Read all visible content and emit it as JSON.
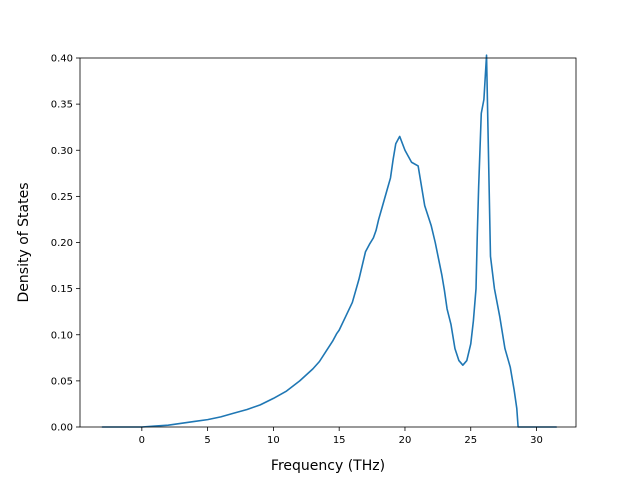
{
  "chart_data": {
    "type": "line",
    "title": "",
    "xlabel": "Frequency (THz)",
    "ylabel": "Density of States",
    "xlim": [
      -4.7,
      33.0
    ],
    "ylim": [
      0.0,
      0.4
    ],
    "grid": false,
    "legend": "none",
    "x_ticks": [
      0,
      5,
      10,
      15,
      20,
      25,
      30
    ],
    "x_tick_labels": [
      "0",
      "5",
      "10",
      "15",
      "20",
      "25",
      "30"
    ],
    "y_ticks": [
      0.0,
      0.05,
      0.1,
      0.15,
      0.2,
      0.25,
      0.3,
      0.35,
      0.4
    ],
    "y_tick_labels": [
      "0.00",
      "0.05",
      "0.10",
      "0.15",
      "0.20",
      "0.25",
      "0.30",
      "0.35",
      "0.40"
    ],
    "colors": {
      "line": "#1f77b4"
    },
    "series": [
      {
        "x": [
          -3,
          0,
          1,
          2,
          3,
          4,
          5,
          6,
          7,
          8,
          9,
          10,
          11,
          12,
          13,
          13.5,
          14,
          14.5,
          14.8,
          15,
          15.5,
          16,
          16.5,
          17,
          17.3,
          17.6,
          17.8,
          18,
          18.3,
          18.6,
          18.9,
          19.1,
          19.3,
          19.6,
          20,
          20.5,
          21,
          21.5,
          22,
          22.3,
          22.5,
          22.8,
          23,
          23.2,
          23.5,
          23.8,
          24.1,
          24.4,
          24.7,
          25,
          25.2,
          25.4,
          25.5,
          25.6,
          25.7,
          25.8,
          26,
          26.2,
          26.5,
          26.8,
          27.2,
          27.6,
          28,
          28.3,
          28.5,
          28.6,
          29,
          30,
          31.5
        ],
        "y": [
          0.0,
          0.0,
          0.001,
          0.002,
          0.004,
          0.006,
          0.008,
          0.011,
          0.015,
          0.019,
          0.024,
          0.031,
          0.039,
          0.05,
          0.063,
          0.071,
          0.082,
          0.093,
          0.101,
          0.105,
          0.12,
          0.135,
          0.16,
          0.19,
          0.198,
          0.205,
          0.213,
          0.225,
          0.24,
          0.255,
          0.27,
          0.29,
          0.307,
          0.315,
          0.3,
          0.287,
          0.283,
          0.24,
          0.218,
          0.2,
          0.186,
          0.165,
          0.148,
          0.128,
          0.111,
          0.085,
          0.072,
          0.067,
          0.072,
          0.09,
          0.115,
          0.15,
          0.21,
          0.26,
          0.3,
          0.34,
          0.355,
          0.403,
          0.185,
          0.15,
          0.12,
          0.085,
          0.065,
          0.04,
          0.02,
          0.0,
          0.0,
          0.0,
          0.0
        ]
      }
    ]
  }
}
